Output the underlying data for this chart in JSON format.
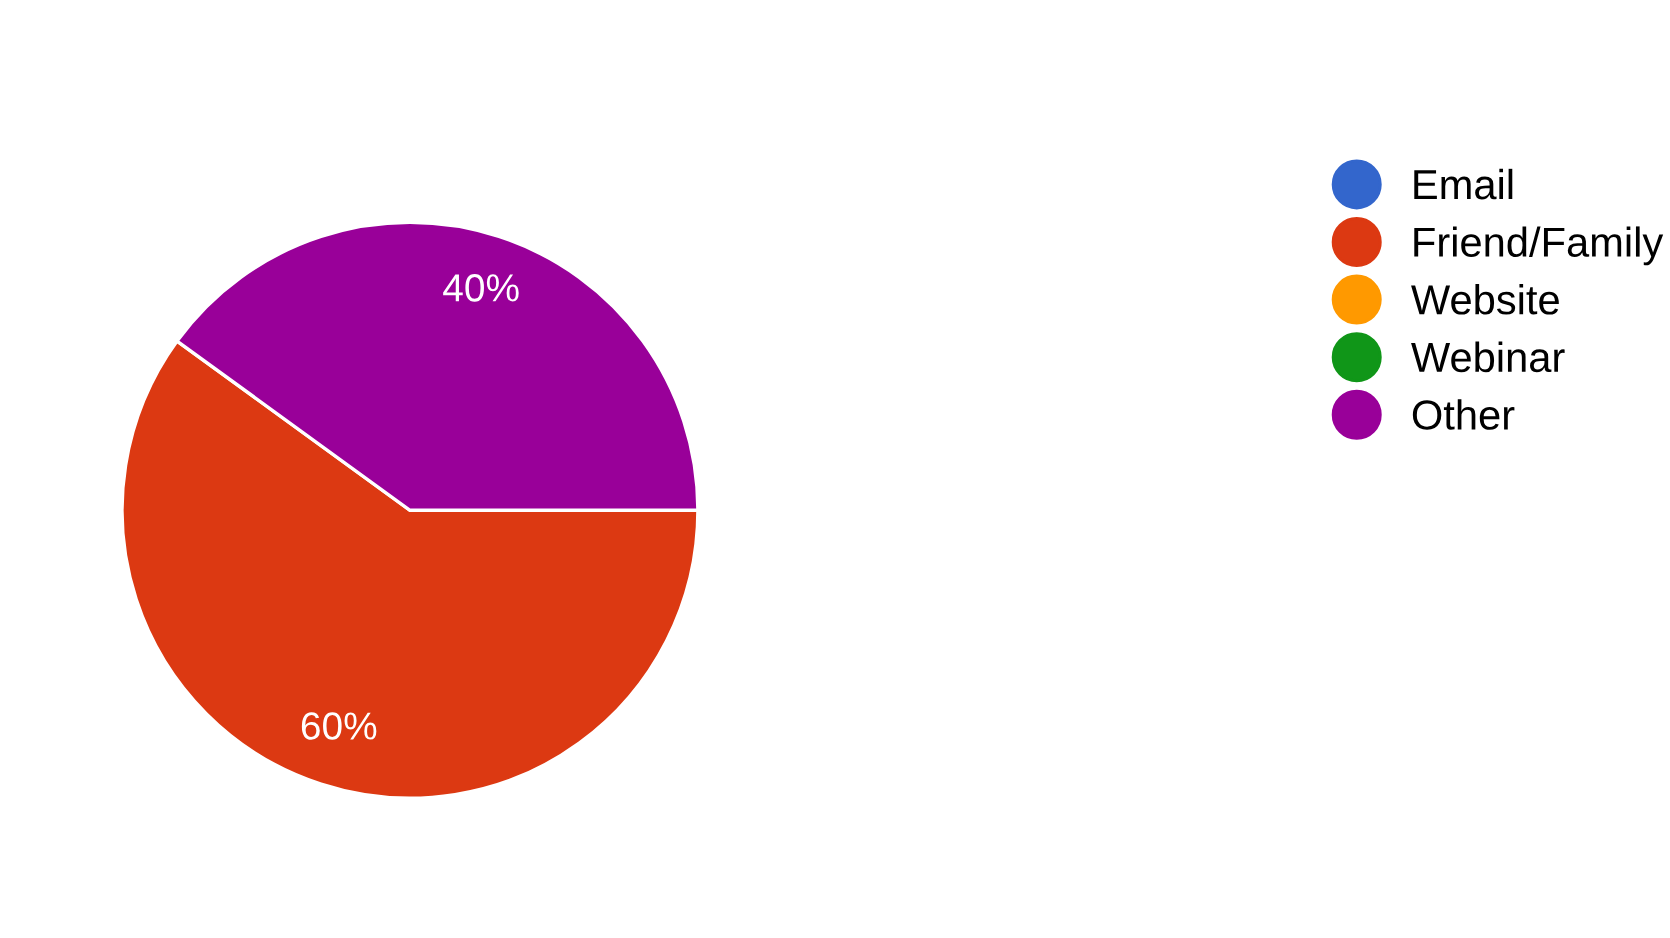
{
  "chart_data": {
    "type": "pie",
    "categories": [
      "Email",
      "Friend/Family",
      "Website",
      "Webinar",
      "Other"
    ],
    "values": [
      0,
      60,
      0,
      0,
      40
    ],
    "colors": [
      "#3366cc",
      "#dc3912",
      "#ff9900",
      "#109618",
      "#990099"
    ],
    "value_labels": [
      null,
      "60%",
      null,
      null,
      "40%"
    ],
    "legend": "right"
  }
}
